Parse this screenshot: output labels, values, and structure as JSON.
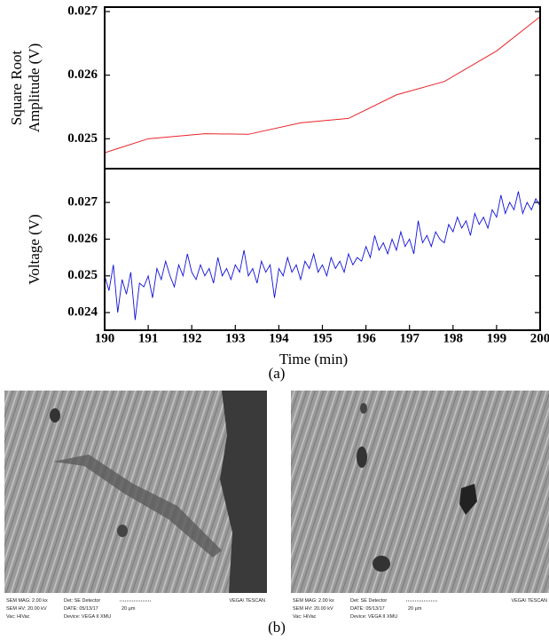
{
  "chart_data": [
    {
      "type": "line",
      "ylabel": [
        "Square Root",
        "Amplitude (V)"
      ],
      "color": "#e8242b",
      "x": [
        190,
        191,
        192.3,
        193.3,
        194.5,
        195.6,
        196.7,
        197.8,
        199,
        200
      ],
      "values": [
        0.02478,
        0.025,
        0.02508,
        0.02507,
        0.02525,
        0.02532,
        0.02569,
        0.0259,
        0.02638,
        0.02692
      ],
      "xlim": [
        190,
        200
      ],
      "ylim": [
        0.02453,
        0.02707
      ],
      "yticks": [
        0.025,
        0.026,
        0.027
      ]
    },
    {
      "type": "line",
      "ylabel": [
        "Voltage (V)"
      ],
      "xlabel": "Time (min)",
      "color": "#1010d8",
      "x": [
        190.0,
        190.1,
        190.2,
        190.3,
        190.4,
        190.5,
        190.6,
        190.7,
        190.8,
        190.9,
        191.0,
        191.1,
        191.2,
        191.3,
        191.4,
        191.5,
        191.6,
        191.7,
        191.8,
        191.9,
        192.0,
        192.1,
        192.2,
        192.3,
        192.4,
        192.5,
        192.6,
        192.7,
        192.8,
        192.9,
        193.0,
        193.1,
        193.2,
        193.3,
        193.4,
        193.5,
        193.6,
        193.7,
        193.8,
        193.9,
        194.0,
        194.1,
        194.2,
        194.3,
        194.4,
        194.5,
        194.6,
        194.7,
        194.8,
        194.9,
        195.0,
        195.1,
        195.2,
        195.3,
        195.4,
        195.5,
        195.6,
        195.7,
        195.8,
        195.9,
        196.0,
        196.1,
        196.2,
        196.3,
        196.4,
        196.5,
        196.6,
        196.7,
        196.8,
        196.9,
        197.0,
        197.1,
        197.2,
        197.3,
        197.4,
        197.5,
        197.6,
        197.7,
        197.8,
        197.9,
        198.0,
        198.1,
        198.2,
        198.3,
        198.4,
        198.5,
        198.6,
        198.7,
        198.8,
        198.9,
        199.0,
        199.1,
        199.2,
        199.3,
        199.4,
        199.5,
        199.6,
        199.7,
        199.8,
        199.9,
        200.0
      ],
      "values": [
        0.025,
        0.0246,
        0.0253,
        0.024,
        0.0249,
        0.0245,
        0.0251,
        0.0238,
        0.0248,
        0.0247,
        0.025,
        0.0244,
        0.0252,
        0.0249,
        0.0254,
        0.025,
        0.0247,
        0.0253,
        0.025,
        0.0256,
        0.0251,
        0.0249,
        0.0253,
        0.025,
        0.0252,
        0.0248,
        0.0255,
        0.025,
        0.0252,
        0.0249,
        0.0253,
        0.0251,
        0.0257,
        0.025,
        0.0252,
        0.0248,
        0.0254,
        0.0251,
        0.0253,
        0.0244,
        0.0252,
        0.025,
        0.0255,
        0.0251,
        0.0253,
        0.0249,
        0.0254,
        0.0252,
        0.0256,
        0.0251,
        0.0253,
        0.025,
        0.0255,
        0.0252,
        0.0254,
        0.0251,
        0.0256,
        0.0253,
        0.0255,
        0.0254,
        0.0258,
        0.0255,
        0.0261,
        0.0257,
        0.0259,
        0.0256,
        0.026,
        0.0257,
        0.0262,
        0.0258,
        0.026,
        0.0256,
        0.0265,
        0.0259,
        0.0261,
        0.0258,
        0.0262,
        0.026,
        0.0259,
        0.0264,
        0.0262,
        0.0266,
        0.0263,
        0.0265,
        0.0261,
        0.0267,
        0.0264,
        0.0266,
        0.0263,
        0.0268,
        0.0266,
        0.0272,
        0.0267,
        0.027,
        0.0268,
        0.0273,
        0.0267,
        0.027,
        0.0268,
        0.0271,
        0.0269
      ],
      "xlim": [
        190,
        200
      ],
      "xticks": [
        190,
        191,
        192,
        193,
        194,
        195,
        196,
        197,
        198,
        199,
        200
      ],
      "ylim": [
        0.02352,
        0.02792
      ],
      "yticks": [
        0.024,
        0.025,
        0.026,
        0.027
      ]
    }
  ],
  "figure": {
    "label_a": "(a)",
    "label_b": "(b)",
    "images": [
      {
        "info": [
          "SEM MAG: 2.00 kx",
          "Det: SE Detector",
          "SEM HV: 20.00 kV",
          "DATE: 05/13/17",
          "20 μm",
          "Vac: HiVac",
          "Device: VEGA II XMU",
          "VEGA\\ TESCAN"
        ]
      },
      {
        "info": [
          "SEM MAG: 2.00 kx",
          "Det: SE Detector",
          "SEM HV: 20.00 kV",
          "DATE: 05/13/17",
          "20 μm",
          "Vac: HiVac",
          "Device: VEGA II XMU",
          "VEGA\\ TESCAN"
        ]
      }
    ]
  }
}
